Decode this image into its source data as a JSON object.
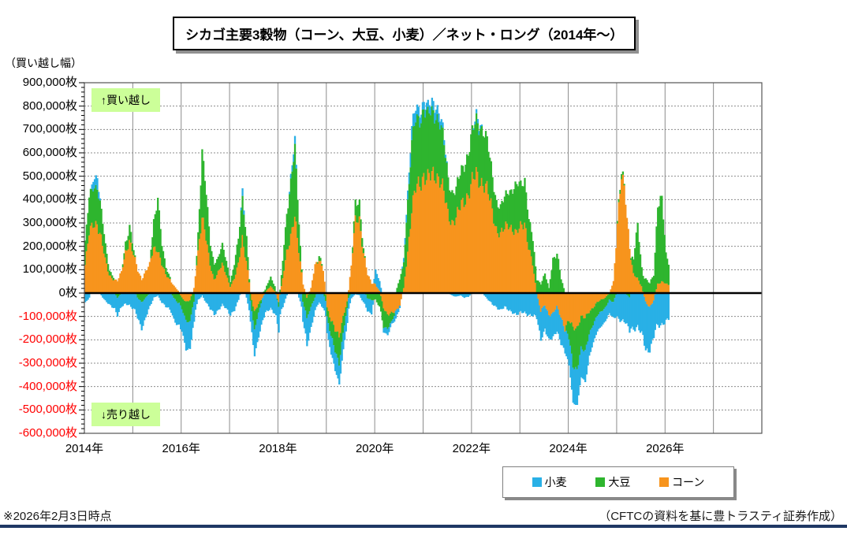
{
  "title": "シカゴ主要3穀物（コーン、大豆、小麦）／ネット・ロング（2014年～）",
  "y_unit_label": "（買い越し幅）",
  "annotations": {
    "top": "↑買い越し",
    "bottom": "↓売り越し",
    "bg_color": "#ccff99"
  },
  "footer": {
    "left": "※2026年2月3日時点",
    "right": "（CFTCの資料を基に豊トラスティ証券作成）",
    "rule_color": "#1f3864"
  },
  "chart_data": {
    "type": "area",
    "stacking": "stacked; positives stack above zero, negatives below; order from zero outward: コーン, 大豆, 小麦",
    "stack_order": [
      "コーン",
      "大豆",
      "小麦"
    ],
    "x_axis": {
      "start_year": 2014,
      "end_year": 2028,
      "data_step_months": 1,
      "labels": [
        "2014年",
        "2016年",
        "2018年",
        "2020年",
        "2022年",
        "2024年",
        "2026年"
      ],
      "label_step_years": 2
    },
    "y_axis": {
      "min": -600000,
      "max": 900000,
      "tick_step": 100000,
      "minor_tick_step": 20000,
      "unit": "枚",
      "negative_label_color": "#ff0000",
      "labels": [
        "900,000枚",
        "800,000枚",
        "700,000枚",
        "600,000枚",
        "500,000枚",
        "400,000枚",
        "300,000枚",
        "200,000枚",
        "100,000枚",
        "0枚",
        "-100,000枚",
        "-200,000枚",
        "-300,000枚",
        "-400,000枚",
        "-500,000枚",
        "-600,000枚"
      ]
    },
    "grid": {
      "h_style": "dotted",
      "v_style": "solid",
      "color": "#8c8c8c",
      "zero_line_color": "#000000"
    },
    "values_scale": 1000,
    "values_note": "monthly net positions Jan2014-Feb2026, in thousands of contracts (枚), estimated from chart",
    "series": [
      {
        "name": "小麦",
        "color": "#29b0e6",
        "values": [
          -40,
          -20,
          40,
          45,
          -10,
          -35,
          -50,
          -60,
          -75,
          -60,
          -45,
          -50,
          -70,
          -90,
          -110,
          -80,
          -60,
          -20,
          -10,
          -40,
          -60,
          -70,
          -90,
          -100,
          -100,
          -120,
          -110,
          -90,
          -30,
          -10,
          -40,
          -70,
          -90,
          -70,
          -50,
          -70,
          -90,
          -70,
          -30,
          35,
          -20,
          -90,
          -115,
          -100,
          -90,
          -80,
          -70,
          -85,
          -100,
          -60,
          -10,
          20,
          35,
          -20,
          -80,
          -110,
          -90,
          -60,
          -40,
          -60,
          -70,
          -80,
          -80,
          -85,
          -75,
          -60,
          -20,
          -5,
          -10,
          -40,
          -55,
          -60,
          60,
          40,
          -20,
          -30,
          -10,
          -30,
          -10,
          20,
          40,
          60,
          50,
          40,
          30,
          30,
          40,
          45,
          30,
          20,
          0,
          -10,
          -15,
          -10,
          -20,
          -15,
          0,
          20,
          15,
          -10,
          -30,
          -50,
          -60,
          -70,
          -60,
          -75,
          -80,
          -90,
          -85,
          -85,
          -90,
          -95,
          -110,
          -120,
          -100,
          -110,
          -105,
          -100,
          -110,
          -100,
          -120,
          -150,
          -150,
          -130,
          -130,
          -90,
          -80,
          -70,
          -60,
          -55,
          -60,
          -70,
          -100,
          -120,
          -130,
          -140,
          -150,
          -150,
          -180,
          -200,
          -180,
          -160,
          -140,
          -130,
          -120,
          -110
        ]
      },
      {
        "name": "大豆",
        "color": "#2eb52e",
        "values": [
          95,
          150,
          165,
          160,
          110,
          60,
          20,
          10,
          -20,
          0,
          40,
          60,
          20,
          -20,
          -40,
          -20,
          0,
          120,
          215,
          80,
          30,
          10,
          -20,
          -40,
          -50,
          -80,
          -90,
          -40,
          80,
          270,
          180,
          90,
          70,
          60,
          80,
          60,
          20,
          60,
          110,
          180,
          100,
          -30,
          -80,
          -40,
          0,
          20,
          40,
          20,
          -20,
          80,
          170,
          230,
          280,
          120,
          -40,
          -90,
          -60,
          -20,
          20,
          0,
          -40,
          -70,
          -90,
          -110,
          -70,
          -30,
          0,
          70,
          75,
          20,
          -20,
          -30,
          -30,
          -60,
          -80,
          -60,
          -40,
          0,
          60,
          120,
          220,
          280,
          290,
          280,
          290,
          260,
          270,
          265,
          240,
          200,
          150,
          130,
          120,
          140,
          160,
          180,
          200,
          230,
          240,
          220,
          180,
          150,
          120,
          110,
          130,
          150,
          170,
          200,
          180,
          190,
          120,
          100,
          60,
          40,
          80,
          20,
          150,
          170,
          60,
          0,
          -80,
          -160,
          -170,
          -140,
          -150,
          -90,
          -70,
          -60,
          -50,
          -40,
          -30,
          -40,
          10,
          20,
          0,
          -20,
          60,
          230,
          80,
          60,
          40,
          80,
          360,
          350,
          120,
          80
        ]
      },
      {
        "name": "コーン",
        "color": "#f7941d",
        "values": [
          120,
          250,
          300,
          305,
          230,
          140,
          80,
          60,
          50,
          90,
          180,
          220,
          160,
          100,
          60,
          90,
          120,
          200,
          190,
          120,
          80,
          60,
          30,
          10,
          -20,
          -40,
          -30,
          20,
          180,
          340,
          230,
          120,
          60,
          90,
          120,
          80,
          30,
          60,
          120,
          240,
          140,
          0,
          -80,
          -50,
          -20,
          10,
          30,
          10,
          -40,
          60,
          180,
          250,
          320,
          180,
          40,
          -20,
          20,
          120,
          150,
          100,
          -60,
          -120,
          -160,
          -180,
          -100,
          -40,
          120,
          300,
          310,
          180,
          80,
          40,
          40,
          10,
          -60,
          -90,
          -90,
          -80,
          -50,
          20,
          180,
          350,
          440,
          480,
          510,
          480,
          500,
          520,
          490,
          420,
          340,
          310,
          320,
          360,
          400,
          430,
          470,
          500,
          490,
          470,
          420,
          350,
          280,
          250,
          270,
          300,
          280,
          250,
          280,
          310,
          200,
          120,
          0,
          -80,
          -50,
          -90,
          -90,
          -60,
          -100,
          -150,
          -120,
          -150,
          -145,
          -100,
          -110,
          -80,
          -60,
          -40,
          -30,
          -20,
          0,
          50,
          300,
          490,
          400,
          200,
          80,
          60,
          30,
          -40,
          -60,
          -30,
          40,
          50,
          40,
          30
        ]
      }
    ]
  }
}
